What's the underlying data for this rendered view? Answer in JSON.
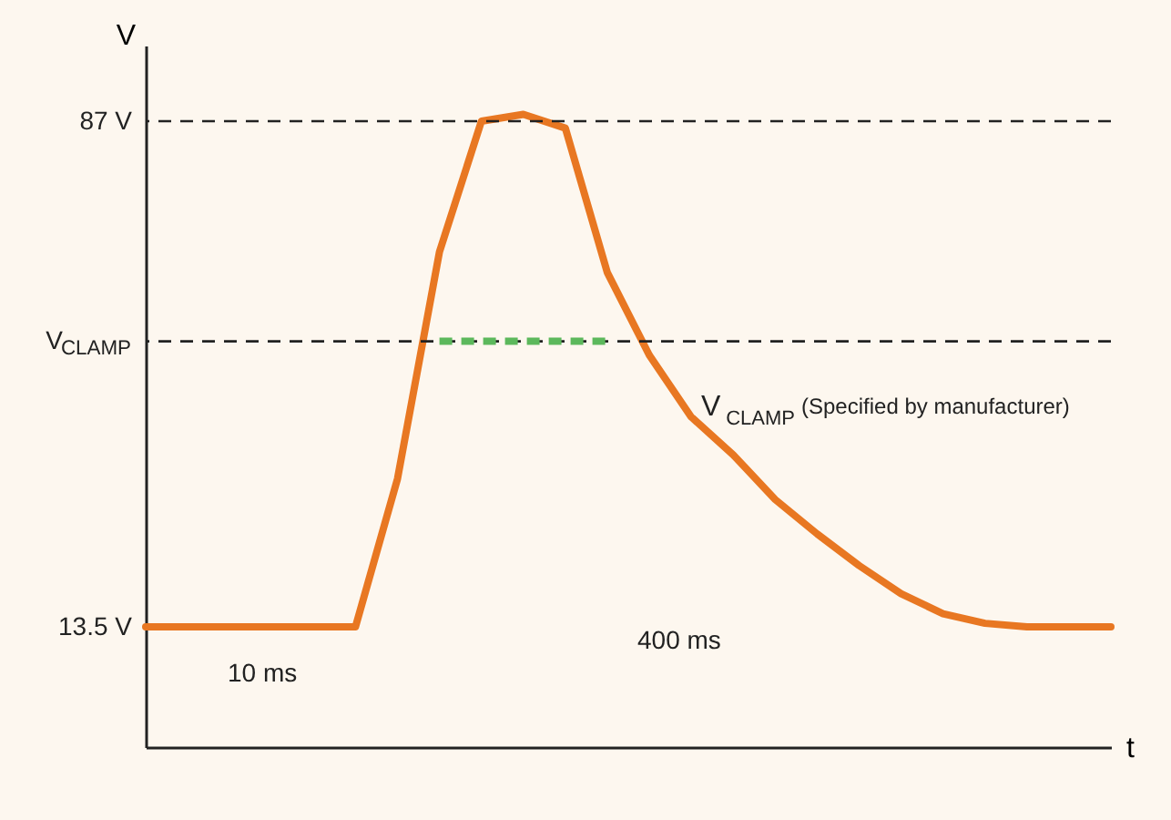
{
  "chart_data": {
    "type": "line",
    "xlabel": "t",
    "ylabel": "V",
    "categories": [
      null,
      null,
      null,
      null,
      null,
      null,
      null,
      null,
      null,
      null,
      null,
      null,
      null,
      null,
      null,
      null,
      null,
      null,
      null,
      null,
      null,
      null,
      null,
      null
    ],
    "series": [
      {
        "color": "#e87722",
        "values": [
          13.5,
          13.5,
          13.5,
          13.5,
          13.5,
          13.5,
          35,
          68,
          87,
          88,
          86,
          65,
          53,
          44,
          38.5,
          32,
          27,
          22.4,
          18.3,
          15.4,
          14,
          13.5,
          13.5,
          13.5
        ]
      },
      {
        "color": "#5cb85c",
        "line_style": "dashed",
        "values": [
          null,
          null,
          null,
          null,
          null,
          null,
          null,
          55,
          55,
          55,
          55,
          55,
          null,
          null,
          null,
          null,
          null,
          null,
          null,
          null,
          null,
          null,
          null,
          null
        ]
      }
    ],
    "ylim": [
      -4,
      98
    ],
    "yticks": [
      {
        "value": 13.5,
        "label": "13.5 V"
      },
      {
        "value": 55,
        "label": "V$_{CLAMP}$"
      },
      {
        "value": 87,
        "label": "87 V"
      }
    ],
    "ref_lines": [
      {
        "axis": "y",
        "value": 87,
        "line_style": "dashed",
        "color": "#222222"
      },
      {
        "axis": "y",
        "value": 55,
        "line_style": "dashed",
        "color": "#222222"
      }
    ],
    "annotations": [
      "10 ms",
      "400 ms",
      "V$_{CLAMP}$ (Specified by manufacturer)"
    ],
    "marker": "none",
    "line_style": "solid"
  }
}
